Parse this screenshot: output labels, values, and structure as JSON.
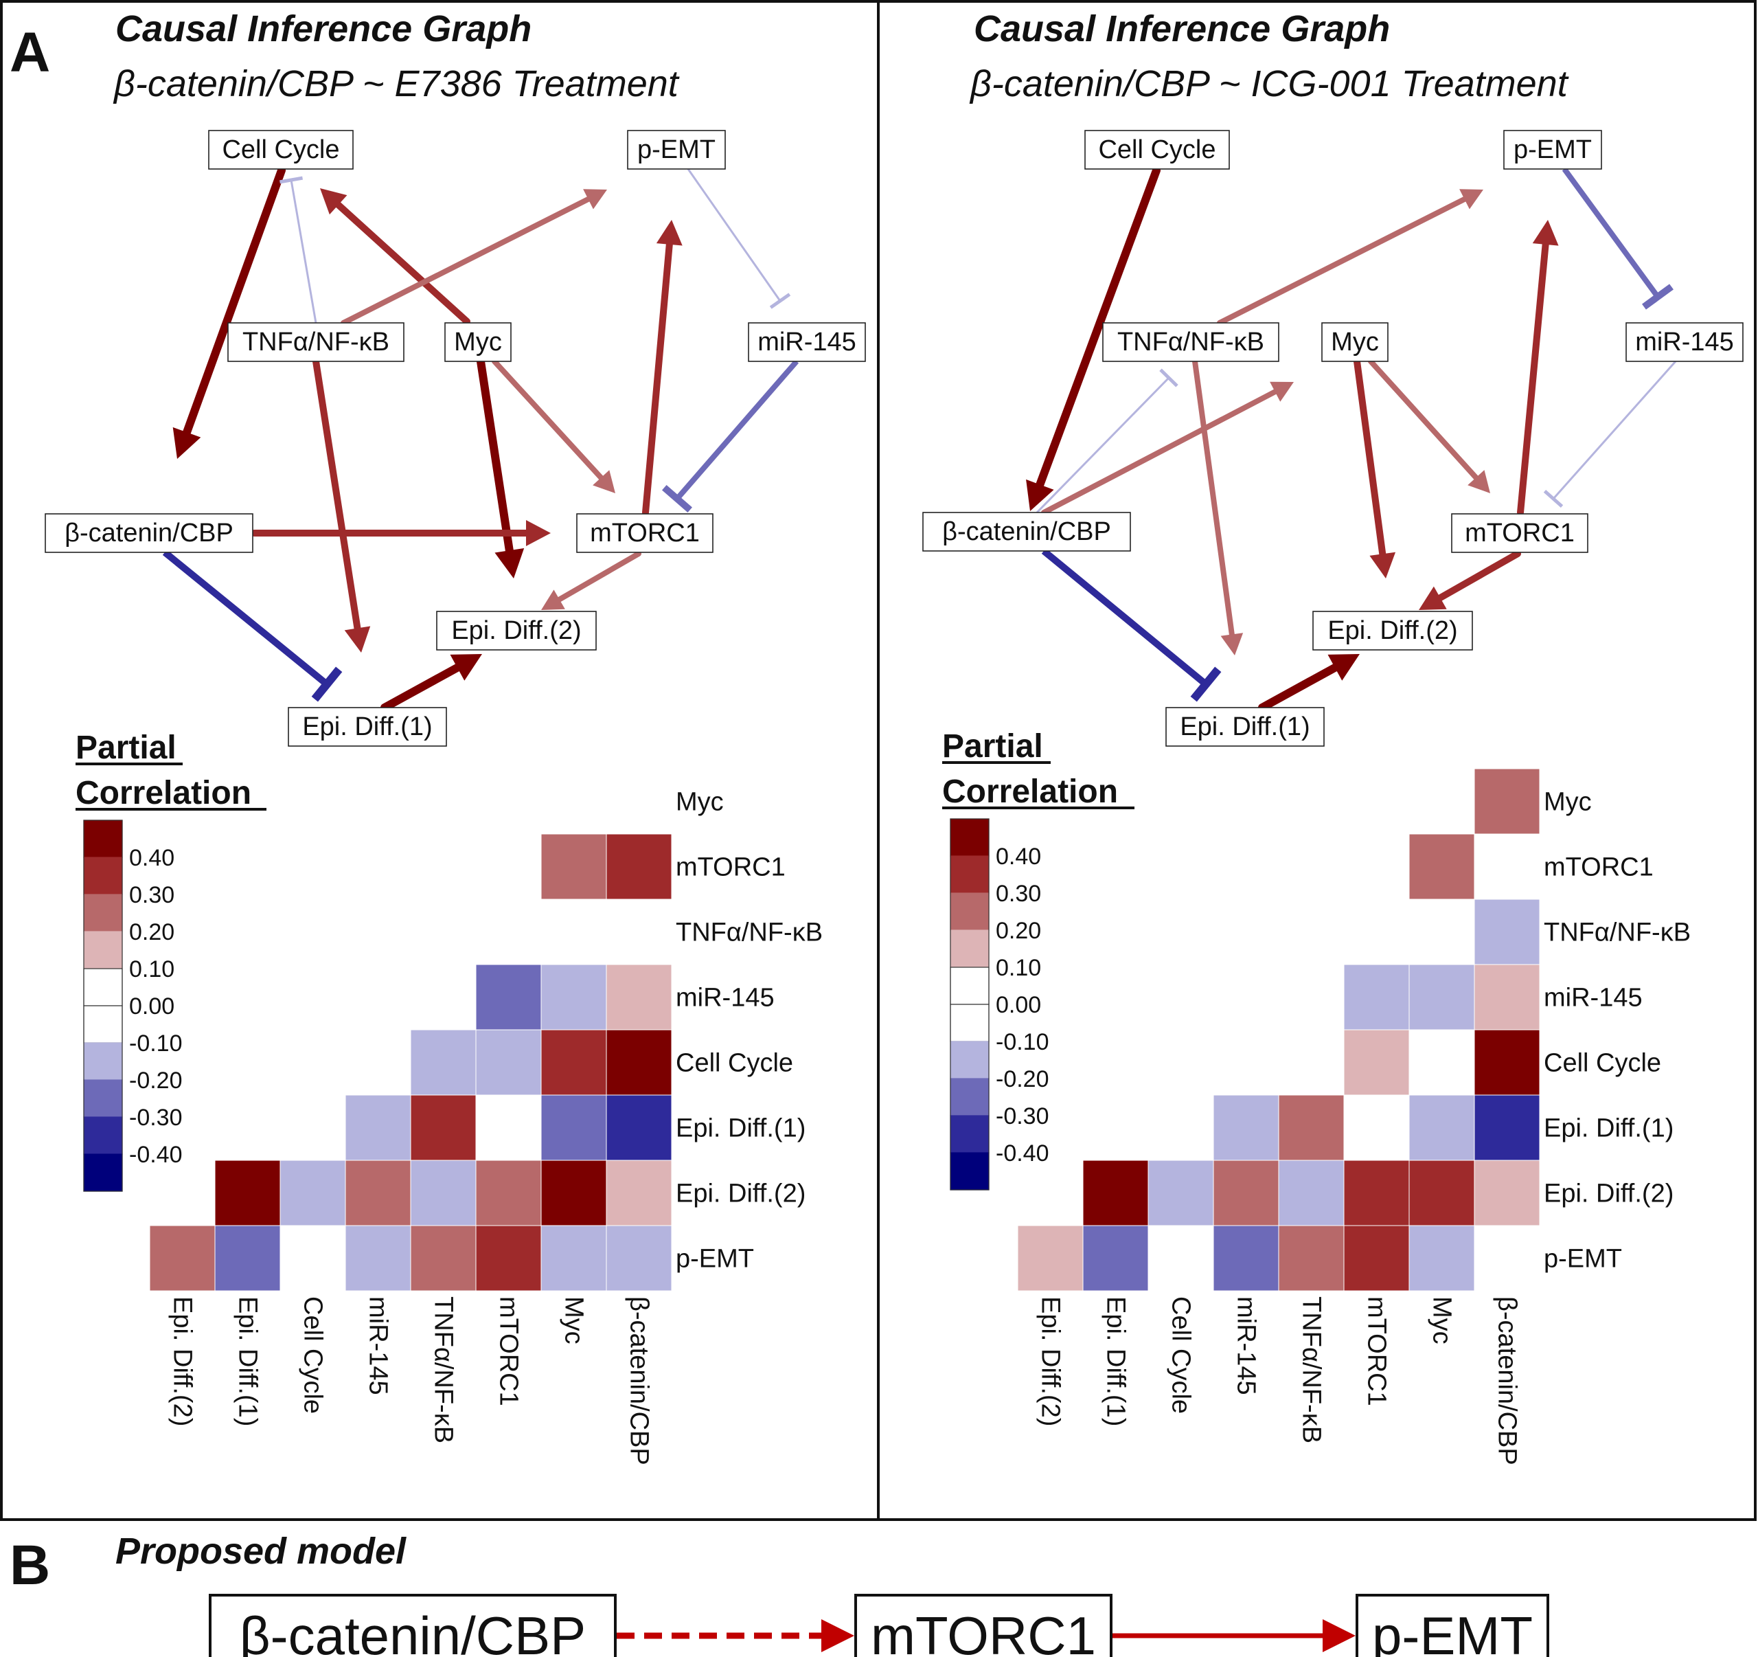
{
  "panel_a": {
    "letter": "A",
    "graph_title": "Causal Inference Graph",
    "left": {
      "subtitle": "β-catenin/CBP ~ E7386 Treatment",
      "nodes": {
        "cell_cycle": "Cell Cycle",
        "p_emt": "p-EMT",
        "tnf": "TNFα/NF-κB",
        "myc": "Myc",
        "mir145": "miR-145",
        "bcat": "β-catenin/CBP",
        "mtorc1": "mTORC1",
        "epi2": "Epi. Diff.(2)",
        "epi1": "Epi. Diff.(1)"
      },
      "edges": [
        {
          "from": "cell_cycle",
          "to": "bcat",
          "kind": "activation",
          "value": 0.45
        },
        {
          "from": "myc",
          "to": "cell_cycle",
          "kind": "activation",
          "value": 0.35
        },
        {
          "from": "tnf",
          "to": "p_emt",
          "kind": "activation",
          "value": 0.25
        },
        {
          "from": "tnf",
          "to": "epi1",
          "kind": "activation",
          "value": 0.35
        },
        {
          "from": "myc",
          "to": "epi2",
          "kind": "activation",
          "value": 0.45
        },
        {
          "from": "myc",
          "to": "mtorc1",
          "kind": "activation",
          "value": 0.25
        },
        {
          "from": "mtorc1",
          "to": "p_emt",
          "kind": "activation",
          "value": 0.35
        },
        {
          "from": "p_emt",
          "to": "mir145",
          "kind": "inhibition",
          "value": -0.15
        },
        {
          "from": "mir145",
          "to": "mtorc1",
          "kind": "inhibition",
          "value": -0.25
        },
        {
          "from": "bcat",
          "to": "mtorc1",
          "kind": "activation",
          "value": 0.35
        },
        {
          "from": "bcat",
          "to": "epi1",
          "kind": "inhibition",
          "value": -0.35
        },
        {
          "from": "mtorc1",
          "to": "epi2",
          "kind": "activation",
          "value": 0.25
        },
        {
          "from": "epi1",
          "to": "epi2",
          "kind": "activation",
          "value": 0.45
        },
        {
          "from": "tnf",
          "to": "cell_cycle",
          "kind": "inhibition",
          "value": -0.15
        }
      ]
    },
    "right": {
      "subtitle": "β-catenin/CBP ~ ICG-001 Treatment",
      "nodes": {
        "cell_cycle": "Cell Cycle",
        "p_emt": "p-EMT",
        "tnf": "TNFα/NF-κB",
        "myc": "Myc",
        "mir145": "miR-145",
        "bcat": "β-catenin/CBP",
        "mtorc1": "mTORC1",
        "epi2": "Epi. Diff.(2)",
        "epi1": "Epi. Diff.(1)"
      },
      "edges": [
        {
          "from": "cell_cycle",
          "to": "bcat",
          "kind": "activation",
          "value": 0.45
        },
        {
          "from": "tnf",
          "to": "p_emt",
          "kind": "activation",
          "value": 0.25
        },
        {
          "from": "bcat",
          "to": "tnf",
          "kind": "inhibition",
          "value": -0.15
        },
        {
          "from": "bcat",
          "to": "myc",
          "kind": "activation",
          "value": 0.25
        },
        {
          "from": "tnf",
          "to": "epi1",
          "kind": "activation",
          "value": 0.25
        },
        {
          "from": "p_emt",
          "to": "mir145",
          "kind": "inhibition",
          "value": -0.25
        },
        {
          "from": "myc",
          "to": "epi2",
          "kind": "activation",
          "value": 0.35
        },
        {
          "from": "myc",
          "to": "mtorc1",
          "kind": "activation",
          "value": 0.25
        },
        {
          "from": "mtorc1",
          "to": "p_emt",
          "kind": "activation",
          "value": 0.35
        },
        {
          "from": "mir145",
          "to": "mtorc1",
          "kind": "inhibition",
          "value": -0.15
        },
        {
          "from": "bcat",
          "to": "epi1",
          "kind": "inhibition",
          "value": -0.35
        },
        {
          "from": "mtorc1",
          "to": "epi2",
          "kind": "activation",
          "value": 0.35
        },
        {
          "from": "epi1",
          "to": "epi2",
          "kind": "activation",
          "value": 0.45
        }
      ]
    }
  },
  "legend": {
    "title_line1": "Partial",
    "title_line2": "Correlation",
    "ticks": [
      "0.40",
      "0.30",
      "0.20",
      "0.10",
      "0.00",
      "-0.10",
      "-0.20",
      "-0.30",
      "-0.40"
    ],
    "colors": [
      "#7b0000",
      "#9e2a2b",
      "#b7696a",
      "#ddb4b6",
      "#ffffff",
      "#ffffff",
      "#b4b4de",
      "#6d6ab8",
      "#2e2a9a",
      "#00007b"
    ]
  },
  "chart_data": [
    {
      "type": "heatmap",
      "title": "β-catenin/CBP ~ E7386 Treatment",
      "rows": [
        "Myc",
        "mTORC1",
        "TNFα/NF-κB",
        "miR-145",
        "Cell Cycle",
        "Epi. Diff.(1)",
        "Epi. Diff.(2)",
        "p-EMT"
      ],
      "cols": [
        "Epi. Diff.(2)",
        "Epi. Diff.(1)",
        "Cell Cycle",
        "miR-145",
        "TNFα/NF-κB",
        "mTORC1",
        "Myc",
        "β-catenin/CBP"
      ],
      "values": [
        [
          null,
          null,
          null,
          null,
          null,
          null,
          null,
          0
        ],
        [
          null,
          null,
          null,
          null,
          null,
          null,
          0.25,
          0.35
        ],
        [
          null,
          null,
          null,
          null,
          null,
          0,
          0,
          0
        ],
        [
          null,
          null,
          null,
          null,
          0,
          -0.25,
          -0.15,
          0.15
        ],
        [
          null,
          null,
          null,
          0,
          -0.15,
          -0.15,
          0.35,
          0.45
        ],
        [
          null,
          null,
          0,
          -0.15,
          0.35,
          0,
          -0.25,
          -0.35
        ],
        [
          null,
          0.45,
          -0.15,
          0.25,
          -0.15,
          0.25,
          0.45,
          0.15
        ],
        [
          0.25,
          -0.25,
          0,
          -0.15,
          0.25,
          0.35,
          -0.15,
          -0.15
        ]
      ]
    },
    {
      "type": "heatmap",
      "title": "β-catenin/CBP ~ ICG-001 Treatment",
      "rows": [
        "Myc",
        "mTORC1",
        "TNFα/NF-κB",
        "miR-145",
        "Cell Cycle",
        "Epi. Diff.(1)",
        "Epi. Diff.(2)",
        "p-EMT"
      ],
      "cols": [
        "Epi. Diff.(2)",
        "Epi. Diff.(1)",
        "Cell Cycle",
        "miR-145",
        "TNFα/NF-κB",
        "mTORC1",
        "Myc",
        "β-catenin/CBP"
      ],
      "values": [
        [
          null,
          null,
          null,
          null,
          null,
          null,
          null,
          0.25
        ],
        [
          null,
          null,
          null,
          null,
          null,
          null,
          0.25,
          0
        ],
        [
          null,
          null,
          null,
          null,
          null,
          0,
          0,
          -0.15
        ],
        [
          null,
          null,
          null,
          null,
          0,
          -0.15,
          -0.15,
          0.15
        ],
        [
          null,
          null,
          null,
          0,
          0,
          0.15,
          0,
          0.45
        ],
        [
          null,
          null,
          0,
          -0.15,
          0.25,
          0,
          -0.15,
          -0.35
        ],
        [
          null,
          0.45,
          -0.15,
          0.25,
          -0.15,
          0.35,
          0.35,
          0.15
        ],
        [
          0.15,
          -0.25,
          0,
          -0.25,
          0.25,
          0.35,
          -0.15,
          0
        ]
      ]
    }
  ],
  "panel_b": {
    "letter": "B",
    "title": "Proposed model",
    "boxes": [
      "β-catenin/CBP",
      "mTORC1",
      "p-EMT"
    ]
  }
}
